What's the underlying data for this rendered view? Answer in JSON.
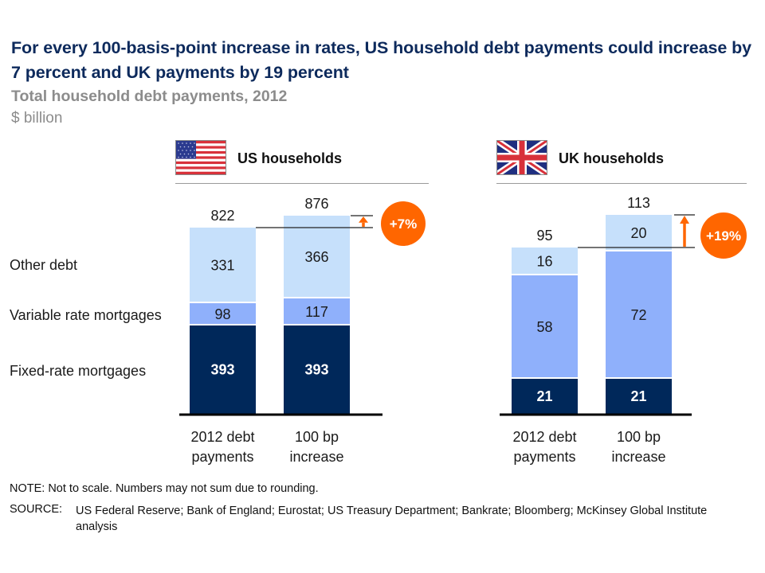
{
  "header": {
    "title": "For every 100-basis-point increase in rates, US household debt payments could increase by 7 percent and UK payments by 19 percent",
    "subtitle": "Total household debt payments, 2012",
    "unit": "$ billion"
  },
  "legend": {
    "other": "Other debt",
    "variable": "Variable rate mortgages",
    "fixed": "Fixed-rate mortgages"
  },
  "colors": {
    "fixed": "#00285a",
    "variable": "#8fb0fb",
    "other": "#c6e0fb",
    "accent": "#ff6600",
    "title": "#0d2a5c"
  },
  "chart_data": [
    {
      "type": "bar",
      "stacked": true,
      "title": "US households",
      "flag_icon": "us-flag-icon",
      "categories": [
        "2012 debt payments",
        "100 bp increase"
      ],
      "category_lines": [
        [
          "2012 debt",
          "payments"
        ],
        [
          "100 bp",
          "increase"
        ]
      ],
      "series": [
        {
          "name": "Fixed-rate mortgages",
          "values": [
            393,
            393
          ]
        },
        {
          "name": "Variable rate mortgages",
          "values": [
            98,
            117
          ]
        },
        {
          "name": "Other debt",
          "values": [
            331,
            366
          ]
        }
      ],
      "totals": [
        822,
        876
      ],
      "change_label": "+7%"
    },
    {
      "type": "bar",
      "stacked": true,
      "title": "UK households",
      "flag_icon": "uk-flag-icon",
      "categories": [
        "2012 debt payments",
        "100 bp increase"
      ],
      "category_lines": [
        [
          "2012 debt",
          "payments"
        ],
        [
          "100 bp",
          "increase"
        ]
      ],
      "series": [
        {
          "name": "Fixed-rate mortgages",
          "values": [
            21,
            21
          ]
        },
        {
          "name": "Variable rate mortgages",
          "values": [
            58,
            72
          ]
        },
        {
          "name": "Other debt",
          "values": [
            16,
            20
          ]
        }
      ],
      "totals": [
        95,
        113
      ],
      "change_label": "+19%"
    }
  ],
  "footer": {
    "note": "NOTE: Not to scale. Numbers may not sum due to rounding.",
    "source_key": "SOURCE:",
    "source_text": "US Federal Reserve; Bank of England; Eurostat; US Treasury Department; Bankrate; Bloomberg; McKinsey Global Institute analysis"
  }
}
